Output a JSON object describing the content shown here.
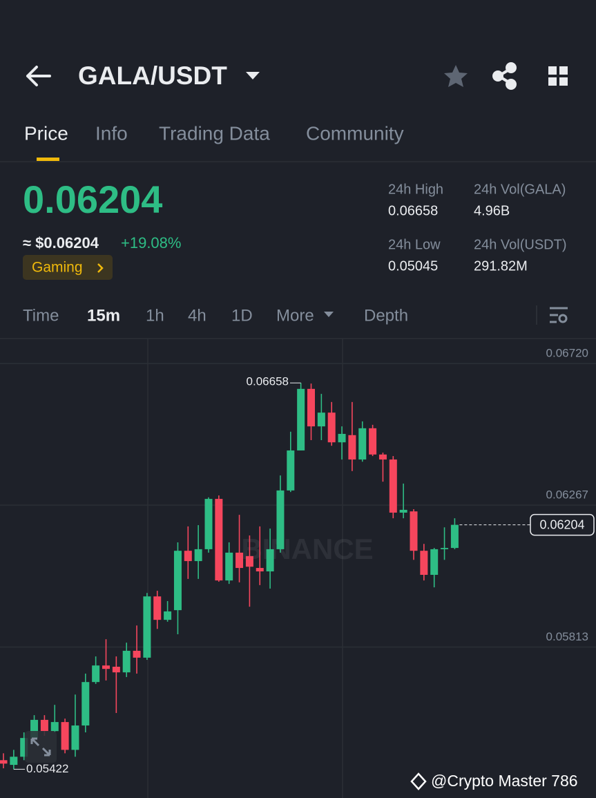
{
  "header": {
    "title": "GALA/USDT"
  },
  "tabs": [
    "Price",
    "Info",
    "Trading Data",
    "Community"
  ],
  "price": {
    "last": "0.06204",
    "usd": "≈ $0.06204",
    "change": "+19.08%",
    "tag": "Gaming"
  },
  "stats": [
    {
      "label": "24h High",
      "value": "0.06658"
    },
    {
      "label": "24h Vol(GALA)",
      "value": "4.96B"
    },
    {
      "label": "24h Low",
      "value": "0.05045"
    },
    {
      "label": "24h Vol(USDT)",
      "value": "291.82M"
    }
  ],
  "intervals": [
    "Time",
    "15m",
    "1h",
    "4h",
    "1D",
    "More",
    "Depth"
  ],
  "chart_data": {
    "type": "candlestick",
    "open": [
      0.05451,
      0.05436,
      0.05462,
      0.05522,
      0.0558,
      0.05544,
      0.05573,
      0.05484,
      0.05562,
      0.05701,
      0.05754,
      0.0575,
      0.05732,
      0.05801,
      0.05779,
      0.05975,
      0.059,
      0.05931,
      0.06121,
      0.06088,
      0.06126,
      0.06287,
      0.06026,
      0.06115,
      0.06104,
      0.06066,
      0.06055,
      0.06126,
      0.06314,
      0.06442,
      0.06639,
      0.06519,
      0.06563,
      0.06468,
      0.06491,
      0.06413,
      0.06513,
      0.06429,
      0.06413,
      0.06243,
      0.06247,
      0.06121,
      0.06044,
      0.06126,
      0.0613
    ],
    "high": [
      0.05473,
      0.05484,
      0.0554,
      0.05595,
      0.05595,
      0.05628,
      0.05584,
      0.05661,
      0.05728,
      0.05783,
      0.05838,
      0.05783,
      0.05827,
      0.05882,
      0.05986,
      0.05993,
      0.0596,
      0.06148,
      0.06199,
      0.06203,
      0.06292,
      0.06298,
      0.06148,
      0.06236,
      0.0617,
      0.06199,
      0.06192,
      0.06362,
      0.06502,
      0.06658,
      0.06656,
      0.06623,
      0.06597,
      0.06519,
      0.06597,
      0.06535,
      0.06524,
      0.06435,
      0.06424,
      0.06336,
      0.06254,
      0.06143,
      0.0613,
      0.06196,
      0.06225
    ],
    "low": [
      0.05425,
      0.05422,
      0.05451,
      0.05522,
      0.05529,
      0.0554,
      0.05473,
      0.05462,
      0.0554,
      0.05695,
      0.05706,
      0.05602,
      0.05717,
      0.05728,
      0.05772,
      0.05871,
      0.05894,
      0.05854,
      0.06031,
      0.06031,
      0.06115,
      0.06022,
      0.06015,
      0.0602,
      0.05942,
      0.06011,
      0.06,
      0.06115,
      0.06309,
      0.06442,
      0.06475,
      0.06475,
      0.06457,
      0.06413,
      0.06376,
      0.06406,
      0.06424,
      0.06342,
      0.06225,
      0.06225,
      0.06092,
      0.06026,
      0.06004,
      0.06092,
      0.06126
    ],
    "close": [
      0.0544,
      0.05462,
      0.05522,
      0.0558,
      0.05544,
      0.05573,
      0.05484,
      0.05562,
      0.05701,
      0.05754,
      0.05743,
      0.05732,
      0.05801,
      0.05779,
      0.05975,
      0.059,
      0.05927,
      0.06121,
      0.06088,
      0.06126,
      0.06287,
      0.06026,
      0.06115,
      0.06066,
      0.0607,
      0.06055,
      0.06126,
      0.06314,
      0.06442,
      0.06639,
      0.06519,
      0.06563,
      0.06468,
      0.06495,
      0.06413,
      0.06513,
      0.06429,
      0.06413,
      0.06243,
      0.06252,
      0.06121,
      0.06044,
      0.06126,
      0.0613,
      0.06204
    ],
    "ylim": [
      0.0533,
      0.068
    ],
    "yticks": [
      {
        "value": 0.0672,
        "label": "0.06720"
      },
      0.06267,
      0.05813
    ],
    "grid": true,
    "up_color": "#2ebd85",
    "down_color": "#f6465d",
    "high_label": 0.06658,
    "low_label": 0.05422,
    "last_price": 0.06204,
    "watermark": "BINANCE"
  },
  "watermark": "@Crypto Master 786"
}
